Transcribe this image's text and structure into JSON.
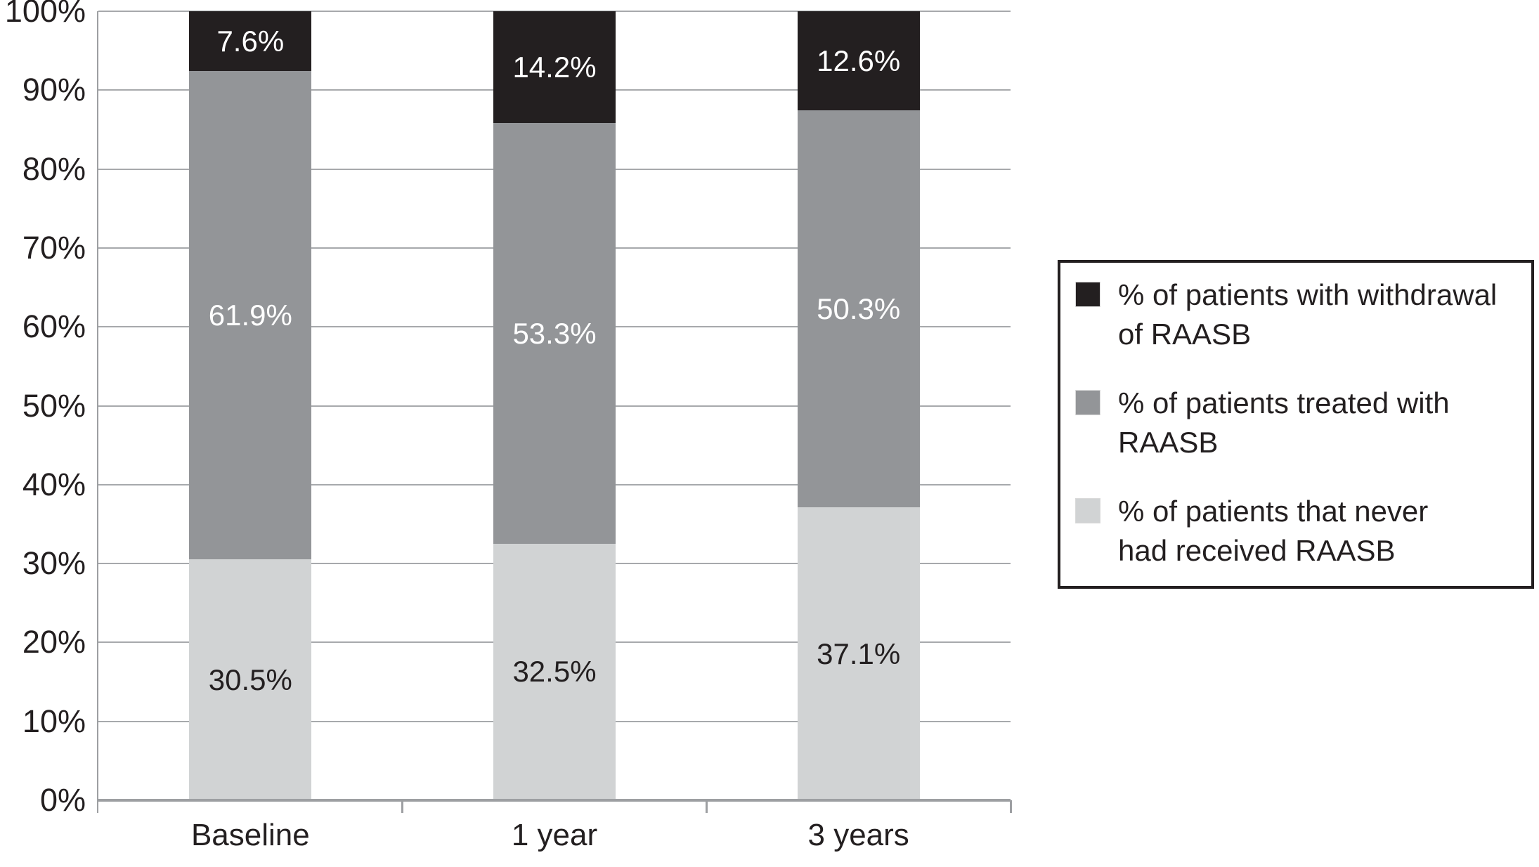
{
  "chart_data": {
    "type": "bar",
    "stacked": true,
    "title": "",
    "xlabel": "",
    "ylabel": "",
    "categories": [
      "Baseline",
      "1 year",
      "3 years"
    ],
    "series": [
      {
        "key": "never",
        "name": "% of patients that never had received RAASB",
        "values": [
          30.5,
          32.5,
          37.1
        ],
        "labels": [
          "30.5%",
          "32.5%",
          "37.1%"
        ],
        "color": "#d1d3d4",
        "label_color": "#231f20"
      },
      {
        "key": "treated",
        "name": "% of patients treated with RAASB",
        "values": [
          61.9,
          53.3,
          50.3
        ],
        "labels": [
          "61.9%",
          "53.3%",
          "50.3%"
        ],
        "color": "#939598",
        "label_color": "#ffffff"
      },
      {
        "key": "withdrawal",
        "name": "% of patients with withdrawal of RAASB",
        "values": [
          7.6,
          14.2,
          12.6
        ],
        "labels": [
          "7.6%",
          "14.2%",
          "12.6%"
        ],
        "color": "#231f20",
        "label_color": "#ffffff"
      }
    ],
    "y_axis": {
      "ticks": [
        "0%",
        "10%",
        "20%",
        "30%",
        "40%",
        "50%",
        "60%",
        "70%",
        "80%",
        "90%",
        "100%"
      ],
      "ylim": [
        0,
        100
      ],
      "grid": true
    },
    "legend": {
      "position": "right",
      "entries": [
        {
          "series_key": "withdrawal",
          "color": "#231f20",
          "lines": [
            "% of patients with withdrawal",
            "of RAASB"
          ]
        },
        {
          "series_key": "treated",
          "color": "#939598",
          "lines": [
            "% of patients treated with",
            "RAASB"
          ]
        },
        {
          "series_key": "never",
          "color": "#d1d3d4",
          "lines": [
            "% of patients that never",
            "had received RAASB"
          ]
        }
      ]
    },
    "colors": {
      "gridline": "#a7a9ac",
      "axis": "#9d9fa2",
      "text": "#231f20",
      "background": "#ffffff"
    }
  }
}
